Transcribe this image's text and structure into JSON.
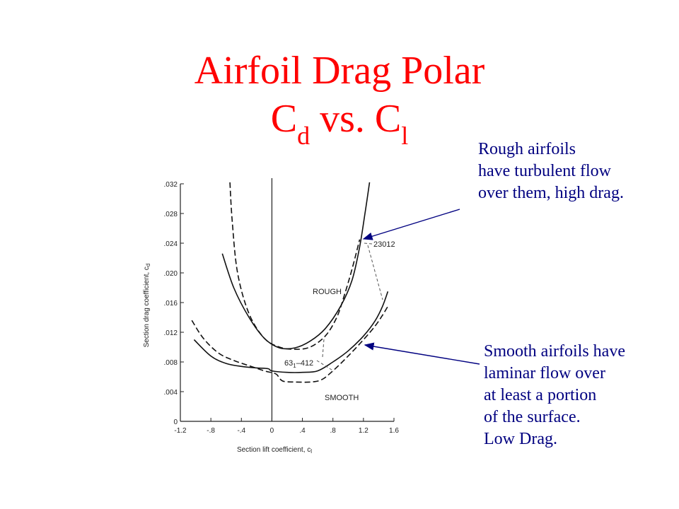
{
  "title": {
    "line1": "Airfoil Drag Polar",
    "line2_main1": "C",
    "line2_sub1": "d",
    "line2_mid": " vs. C",
    "line2_sub2": "l"
  },
  "notes": {
    "rough": [
      "Rough airfoils",
      "have turbulent flow",
      "over them, high drag."
    ],
    "smooth": [
      "Smooth airfoils have",
      "laminar flow over",
      "at least a portion",
      "of the surface.",
      "Low Drag."
    ]
  },
  "colors": {
    "title": "#ff0000",
    "note": "#000080",
    "arrow": "#000080"
  },
  "chart_data": {
    "type": "line",
    "xlabel": "Section lift coefficient, c",
    "xlabel_sub": "l",
    "ylabel": "Section drag coefficient, c",
    "ylabel_sub": "d",
    "xlim": [
      -1.2,
      1.6
    ],
    "ylim": [
      0,
      0.032
    ],
    "x_ticks": [
      -1.2,
      -0.8,
      -0.4,
      0,
      0.4,
      0.8,
      1.2,
      1.6
    ],
    "x_tick_labels": [
      "-1.2",
      "-.8",
      "-.4",
      "0",
      ".4",
      ".8",
      "1.2",
      "1.6"
    ],
    "y_ticks": [
      0,
      0.004,
      0.008,
      0.012,
      0.016,
      0.02,
      0.024,
      0.028,
      0.032
    ],
    "y_tick_labels": [
      "0",
      ".004",
      ".008",
      ".012",
      ".016",
      ".020",
      ".024",
      ".028",
      ".032"
    ],
    "annotations": {
      "rough": "ROUGH",
      "smooth": "SMOOTH",
      "airfoil_a": "23012",
      "airfoil_b_main": "63",
      "airfoil_b_sub": "1",
      "airfoil_b_rest": "–412"
    },
    "series": [
      {
        "name": "23012 rough",
        "style": "solid",
        "x": [
          -0.65,
          -0.5,
          -0.3,
          -0.1,
          0.1,
          0.3,
          0.5,
          0.7,
          0.9,
          1.05,
          1.15,
          1.22,
          1.28
        ],
        "y": [
          0.0226,
          0.018,
          0.014,
          0.0112,
          0.0099,
          0.0099,
          0.0108,
          0.0125,
          0.0155,
          0.019,
          0.0235,
          0.028,
          0.0322
        ]
      },
      {
        "name": "63-412 rough",
        "style": "dashed",
        "x": [
          -0.55,
          -0.52,
          -0.45,
          -0.3,
          -0.1,
          0.1,
          0.3,
          0.5,
          0.7,
          0.85,
          0.95,
          1.05,
          1.15
        ],
        "y": [
          0.0322,
          0.027,
          0.02,
          0.0145,
          0.0112,
          0.01,
          0.0097,
          0.01,
          0.0115,
          0.014,
          0.017,
          0.0205,
          0.0245
        ]
      },
      {
        "name": "23012 smooth",
        "style": "solid",
        "x": [
          -1.02,
          -0.8,
          -0.6,
          -0.4,
          -0.2,
          -0.05,
          0.0,
          0.2,
          0.4,
          0.6,
          0.8,
          1.0,
          1.2,
          1.35,
          1.45,
          1.52
        ],
        "y": [
          0.011,
          0.0088,
          0.0078,
          0.0074,
          0.0072,
          0.0071,
          0.0068,
          0.0066,
          0.0066,
          0.0068,
          0.008,
          0.0095,
          0.0115,
          0.0135,
          0.0155,
          0.0175
        ]
      },
      {
        "name": "63-412 smooth",
        "style": "dashed",
        "x": [
          -1.05,
          -0.9,
          -0.7,
          -0.5,
          -0.3,
          -0.1,
          0.05,
          0.1,
          0.15,
          0.3,
          0.5,
          0.65,
          0.8,
          1.0,
          1.2,
          1.35,
          1.45,
          1.52
        ],
        "y": [
          0.0136,
          0.0112,
          0.0092,
          0.0082,
          0.0075,
          0.0068,
          0.0064,
          0.0058,
          0.0054,
          0.0053,
          0.0053,
          0.0056,
          0.0068,
          0.0088,
          0.011,
          0.0128,
          0.0143,
          0.0155
        ]
      }
    ]
  }
}
